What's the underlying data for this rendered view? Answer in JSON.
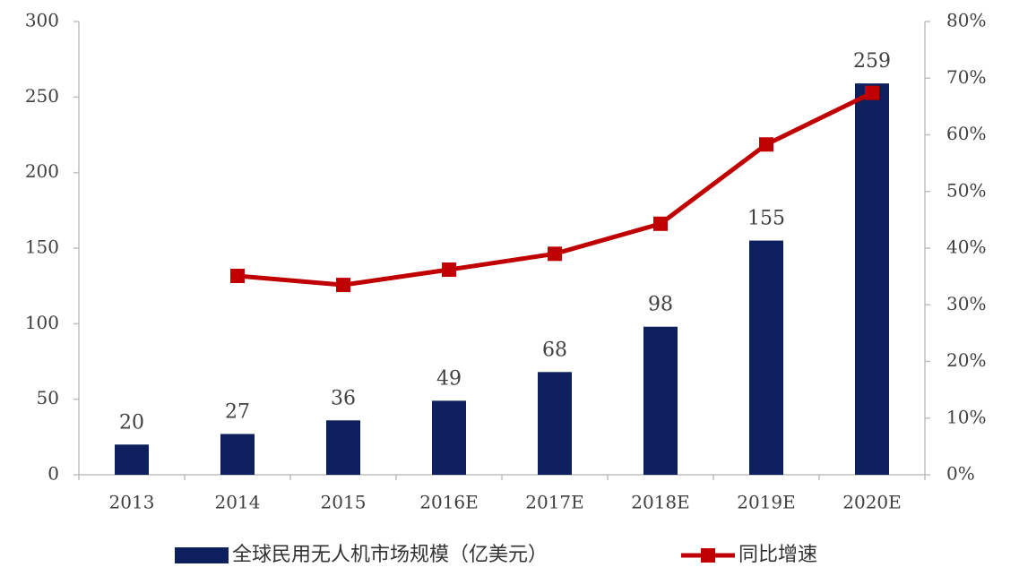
{
  "chart_data": {
    "type": "bar-line",
    "categories": [
      "2013",
      "2014",
      "2015",
      "2016E",
      "2017E",
      "2018E",
      "2019E",
      "2020E"
    ],
    "series": [
      {
        "name": "全球民用无人机市场规模（亿美元）",
        "type": "bar",
        "color": "#0d1f5c",
        "values": [
          20,
          27,
          36,
          49,
          68,
          98,
          155,
          259
        ]
      },
      {
        "name": "同比增速",
        "type": "line",
        "axis": "y2",
        "color": "#c00000",
        "values": [
          null,
          35.1,
          33.5,
          36.2,
          39.0,
          44.3,
          58.3,
          67.4
        ]
      }
    ],
    "ylim": [
      0,
      300
    ],
    "yticks": [
      0,
      50,
      100,
      150,
      200,
      250,
      300
    ],
    "y2lim": [
      0,
      80
    ],
    "y2ticks": [
      {
        "value": 0,
        "label": "0%"
      },
      {
        "value": 10,
        "label": "10%"
      },
      {
        "value": 20,
        "label": "20%"
      },
      {
        "value": 30,
        "label": "30%"
      },
      {
        "value": 40,
        "label": "40%"
      },
      {
        "value": 50,
        "label": "50%"
      },
      {
        "value": 60,
        "label": "60%"
      },
      {
        "value": 70,
        "label": "70%"
      },
      {
        "value": 80,
        "label": "80%"
      }
    ],
    "grid": false,
    "legend": "bottom"
  }
}
